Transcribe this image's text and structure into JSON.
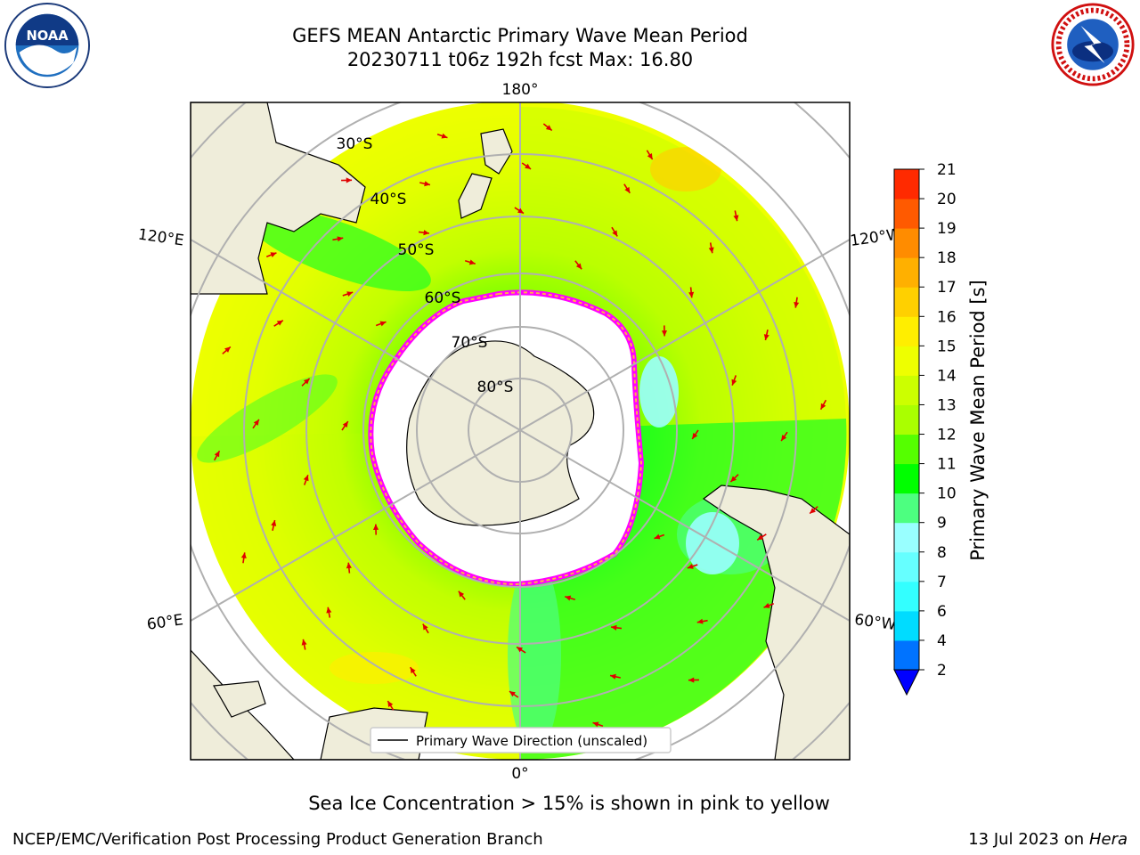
{
  "title": {
    "line1": "GEFS MEAN Antarctic Primary Wave Mean Period",
    "line2": "20230711 t06z 192h fcst   Max: 16.80"
  },
  "map": {
    "projection": "south-polar-stereographic",
    "lon_labels": {
      "top": "180°",
      "bottom": "0°",
      "upper_left": "120°E",
      "upper_right": "120°W",
      "lower_left": "60°E",
      "lower_right": "60°W"
    },
    "lat_labels": [
      "30°S",
      "40°S",
      "50°S",
      "60°S",
      "70°S",
      "80°S"
    ],
    "legend": "Primary Wave Direction (unscaled)",
    "land_color": "#efedda",
    "ice_edge_colors": [
      "#ff00ff",
      "#ff66cc",
      "#ffb347"
    ]
  },
  "colorbar": {
    "label": "Primary Wave Mean Period [s]",
    "ticks": [
      "2",
      "4",
      "6",
      "7",
      "8",
      "9",
      "10",
      "11",
      "12",
      "13",
      "14",
      "15",
      "16",
      "17",
      "18",
      "19",
      "20",
      "21"
    ],
    "colors": [
      "#0073ff",
      "#00dcff",
      "#33ffff",
      "#66ffff",
      "#99ffff",
      "#4dff80",
      "#00ff00",
      "#55ff00",
      "#aaff00",
      "#ccff00",
      "#eeff00",
      "#ffee00",
      "#ffd000",
      "#ffb000",
      "#ff8c00",
      "#ff5a00",
      "#ff2a00"
    ],
    "under_color": "#0000ff"
  },
  "ice_note": "Sea Ice Concentration > 15% is shown in pink to yellow",
  "footer": {
    "left": "NCEP/EMC/Verification Post Processing Product Generation Branch",
    "date": "13 Jul 2023 on ",
    "host": "Hera"
  },
  "logos": {
    "left": "noaa-logo",
    "right": "nws-logo"
  }
}
